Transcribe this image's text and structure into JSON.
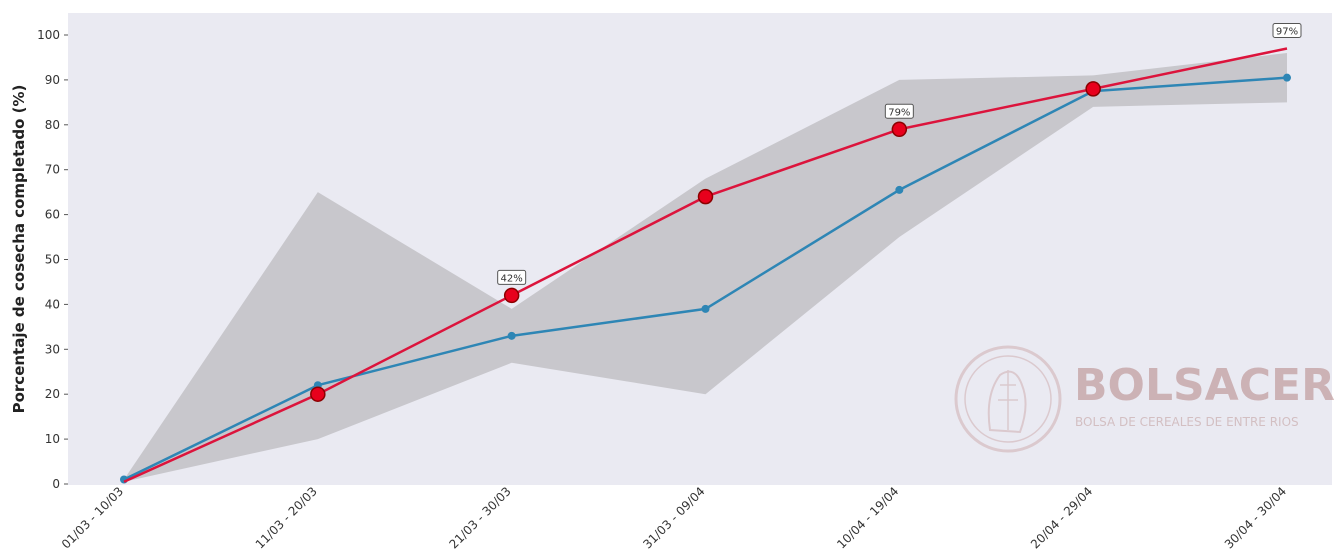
{
  "chart_data": {
    "type": "line",
    "title": "",
    "xlabel": "",
    "ylabel": "Porcentaje de cosecha completado (%)",
    "ylim": [
      0,
      100
    ],
    "yticks": [
      0,
      10,
      20,
      30,
      40,
      50,
      60,
      70,
      80,
      90,
      100
    ],
    "categories": [
      "01/03 - 10/03",
      "11/03 - 20/03",
      "21/03 - 30/03",
      "31/03 - 09/04",
      "10/04 - 19/04",
      "20/04 - 29/04",
      "30/04 - 30/04"
    ],
    "grid": false,
    "series": [
      {
        "values": [
          0.5,
          20,
          42,
          64,
          79,
          88,
          97
        ],
        "color": "#dc143c"
      },
      {
        "values": [
          1,
          22,
          33,
          39,
          65.5,
          87.5,
          90.5
        ],
        "color": "#2e86b5"
      }
    ],
    "band": {
      "lower": [
        0.5,
        10,
        27,
        20,
        55,
        84,
        85
      ],
      "upper": [
        1,
        65,
        39,
        68,
        90,
        91,
        96
      ],
      "color": "#aaaaaa"
    },
    "data_labels": [
      {
        "index": 2,
        "text": "42%"
      },
      {
        "index": 4,
        "text": "79%"
      },
      {
        "index": 6,
        "text": "97%"
      }
    ],
    "colors": {
      "background": "#eaeaf2",
      "band": "#c8c7cc"
    }
  },
  "watermark": {
    "title": "BOLSACER",
    "subtitle": "BOLSA DE CEREALES DE ENTRE RIOS"
  }
}
